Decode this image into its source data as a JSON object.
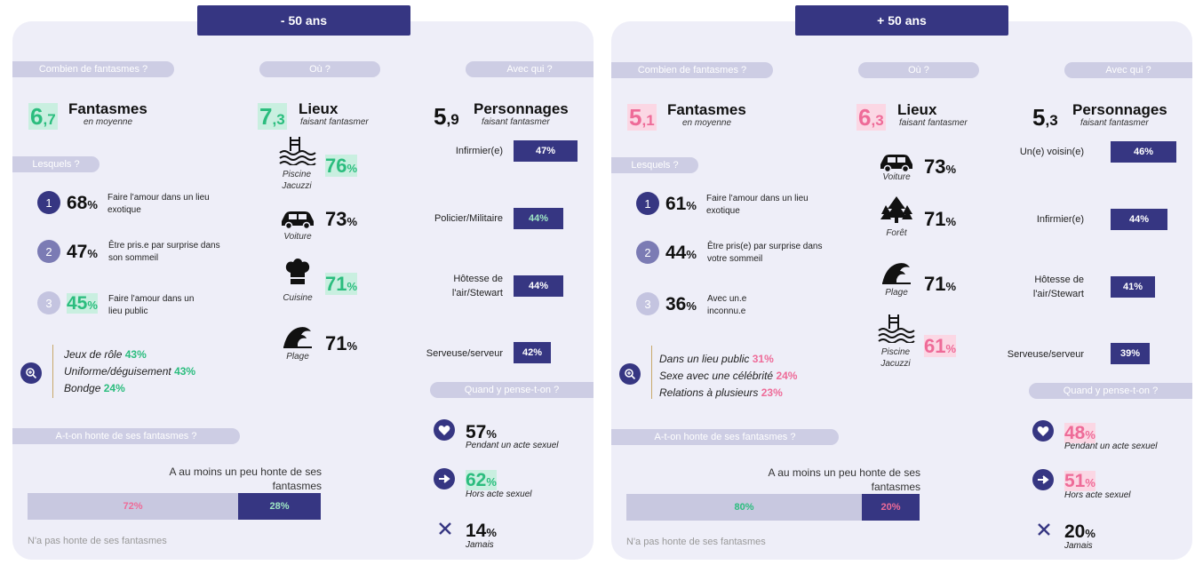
{
  "left": {
    "header": "- 50 ans",
    "q_count": "Combien de fantasmes ?",
    "q_where": "Où ?",
    "q_who": "Avec qui ?",
    "count": {
      "int": "6",
      "dec": ",7",
      "title": "Fantasmes",
      "sub": "en moyenne"
    },
    "places": {
      "int": "7",
      "dec": ",3",
      "title": "Lieux",
      "sub": "faisant fantasmer"
    },
    "people": {
      "int": "5",
      "dec": ",9",
      "title": "Personnages",
      "sub": "faisant fantasmer"
    },
    "which": "Lesquels ?",
    "ranking": [
      {
        "n": "1",
        "pct": "68",
        "txt": "Faire l'amour dans un lieu exotique"
      },
      {
        "n": "2",
        "pct": "47",
        "txt": "Être pris.e par surprise dans son sommeil"
      },
      {
        "n": "3",
        "pct": "45",
        "txt": "Faire l'amour dans un lieu public"
      }
    ],
    "extras": [
      {
        "label": "Jeux de rôle",
        "val": "43%"
      },
      {
        "label": "Uniforme/déguisement",
        "val": "43%"
      },
      {
        "label": "Bondge",
        "val": "24%"
      }
    ],
    "locations": [
      {
        "name": "Piscine Jacuzzi",
        "pct": "76",
        "icon": "pool-icon"
      },
      {
        "name": "Voiture",
        "pct": "73",
        "icon": "car-icon"
      },
      {
        "name": "Cuisine",
        "pct": "71",
        "icon": "chef-hat-icon"
      },
      {
        "name": "Plage",
        "pct": "71",
        "icon": "wave-icon"
      }
    ],
    "characters": [
      {
        "name": "Infirmier(e)",
        "pct": "47%"
      },
      {
        "name": "Policier/Militaire",
        "pct": "44%"
      },
      {
        "name": "Hôtesse de l'air/Stewart",
        "pct": "44%"
      },
      {
        "name": "Serveuse/serveur",
        "pct": "42%"
      }
    ],
    "when_q": "Quand y pense-t-on ?",
    "when": [
      {
        "pct": "57",
        "label": "Pendant un acte sexuel",
        "icon": "heart-icon"
      },
      {
        "pct": "62",
        "label": "Hors acte sexuel",
        "icon": "arrow-icon"
      },
      {
        "pct": "14",
        "label": "Jamais",
        "icon": "cross-icon"
      }
    ],
    "shame_q": "A-t-on honte de ses fantasmes ?",
    "shame_label": "A au moins un peu honte de ses fantasmes",
    "shame_no": "72%",
    "shame_yes": "28%",
    "no_shame_note": "N'a pas honte de ses fantasmes"
  },
  "right": {
    "header": "+ 50 ans",
    "q_count": "Combien de fantasmes ?",
    "q_where": "Où ?",
    "q_who": "Avec qui ?",
    "count": {
      "int": "5",
      "dec": ",1",
      "title": "Fantasmes",
      "sub": "en moyenne"
    },
    "places": {
      "int": "6",
      "dec": ",3",
      "title": "Lieux",
      "sub": "faisant fantasmer"
    },
    "people": {
      "int": "5",
      "dec": ",3",
      "title": "Personnages",
      "sub": "faisant fantasmer"
    },
    "which": "Lesquels ?",
    "ranking": [
      {
        "n": "1",
        "pct": "61",
        "txt": "Faire l'amour dans un lieu exotique"
      },
      {
        "n": "2",
        "pct": "44",
        "txt": "Être pris(e) par surprise dans votre sommeil"
      },
      {
        "n": "3",
        "pct": "36",
        "txt": "Avec un.e inconnu.e"
      }
    ],
    "extras": [
      {
        "label": "Dans un lieu public",
        "val": "31%"
      },
      {
        "label": "Sexe avec une célébrité",
        "val": "24%"
      },
      {
        "label": "Relations à plusieurs",
        "val": "23%"
      }
    ],
    "locations": [
      {
        "name": "Voiture",
        "pct": "73",
        "icon": "car-icon"
      },
      {
        "name": "Forêt",
        "pct": "71",
        "icon": "forest-icon"
      },
      {
        "name": "Plage",
        "pct": "71",
        "icon": "wave-icon"
      },
      {
        "name": "Piscine Jacuzzi",
        "pct": "61",
        "icon": "pool-icon"
      }
    ],
    "characters": [
      {
        "name": "Un(e) voisin(e)",
        "pct": "46%"
      },
      {
        "name": "Infirmier(e)",
        "pct": "44%"
      },
      {
        "name": "Hôtesse de l'air/Stewart",
        "pct": "41%"
      },
      {
        "name": "Serveuse/serveur",
        "pct": "39%"
      }
    ],
    "when_q": "Quand y pense-t-on ?",
    "when": [
      {
        "pct": "48",
        "label": "Pendant un acte sexuel",
        "icon": "heart-icon"
      },
      {
        "pct": "51",
        "label": "Hors acte sexuel",
        "icon": "arrow-icon"
      },
      {
        "pct": "20",
        "label": "Jamais",
        "icon": "cross-icon"
      }
    ],
    "shame_q": "A-t-on honte de ses fantasmes ?",
    "shame_label": "A au moins un peu honte de ses fantasmes",
    "shame_no": "80%",
    "shame_yes": "20%",
    "no_shame_note": "N'a pas honte de ses fantasmes"
  },
  "colors": {
    "navy": "#363682",
    "green": "#2bbd7e",
    "pink": "#ee6b98",
    "panel": "#eeeef8"
  },
  "percent_sign": "%"
}
